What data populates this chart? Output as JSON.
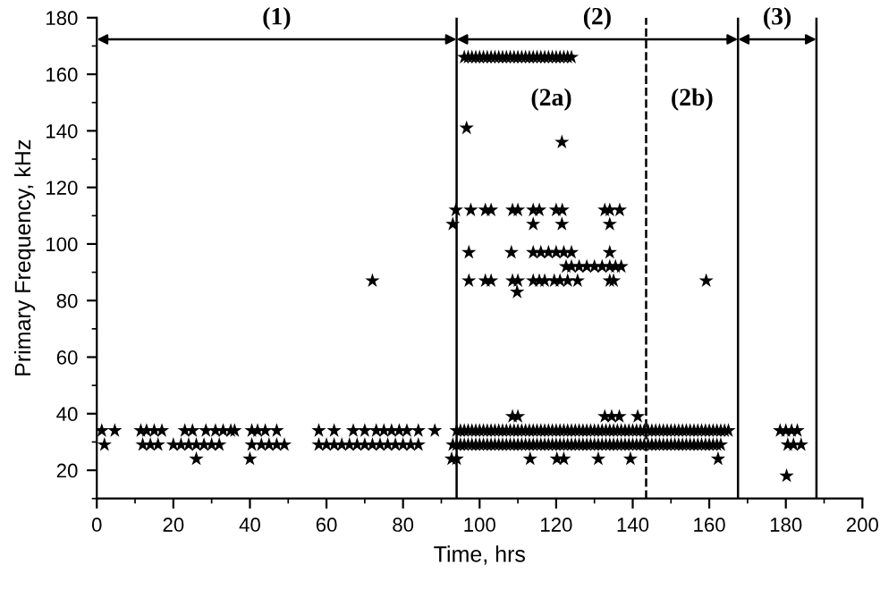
{
  "chart_data": {
    "type": "scatter",
    "xlabel": "Time, hrs",
    "ylabel": "Primary Frequency, kHz",
    "xlim": [
      0,
      200
    ],
    "xticks": [
      0,
      20,
      40,
      60,
      80,
      100,
      120,
      140,
      160,
      180,
      200
    ],
    "ylim": [
      10,
      180
    ],
    "yticks": [
      20,
      40,
      60,
      80,
      100,
      120,
      140,
      160,
      180
    ],
    "grid": false,
    "legend": false,
    "marker": "star",
    "series": [
      {
        "color": "#000000",
        "x": [
          1.3,
          4.7,
          11.5,
          13,
          15,
          17,
          23,
          25,
          28.5,
          31,
          33,
          35,
          36,
          40.5,
          42,
          44,
          47,
          58,
          62,
          67,
          70,
          73,
          75,
          77,
          79,
          81,
          84,
          88.3,
          94,
          95,
          96,
          97,
          98,
          99,
          100,
          101,
          102,
          103,
          104,
          105,
          106,
          107,
          108,
          109,
          110,
          111,
          112,
          113,
          114,
          115,
          116,
          117,
          118,
          119,
          120,
          121,
          122,
          123,
          124,
          125,
          126,
          127,
          128,
          129,
          130,
          131,
          132,
          133,
          134,
          135,
          136,
          137,
          138,
          139,
          140,
          141,
          142,
          143,
          144,
          145,
          146,
          147,
          148,
          149,
          150,
          151,
          152,
          153,
          154,
          155,
          156,
          157,
          158,
          159,
          160,
          161,
          162,
          163,
          164,
          165,
          178.5,
          180,
          181.5,
          183
        ],
        "values": [
          34,
          34,
          34,
          34,
          34,
          34,
          34,
          34,
          34,
          34,
          34,
          34,
          34,
          34,
          34,
          34,
          34,
          34,
          34,
          34,
          34,
          34,
          34,
          34,
          34,
          34,
          34,
          34,
          34,
          34,
          34,
          34,
          34,
          34,
          34,
          34,
          34,
          34,
          34,
          34,
          34,
          34,
          34,
          34,
          34,
          34,
          34,
          34,
          34,
          34,
          34,
          34,
          34,
          34,
          34,
          34,
          34,
          34,
          34,
          34,
          34,
          34,
          34,
          34,
          34,
          34,
          34,
          34,
          34,
          34,
          34,
          34,
          34,
          34,
          34,
          34,
          34,
          34,
          34,
          34,
          34,
          34,
          34,
          34,
          34,
          34,
          34,
          34,
          34,
          34,
          34,
          34,
          34,
          34,
          34,
          34,
          34,
          34,
          34,
          34,
          34,
          34,
          34,
          34
        ]
      },
      {
        "color": "#000000",
        "x": [
          2,
          12,
          14,
          16,
          20,
          22,
          24,
          26,
          28,
          30,
          32,
          40.5,
          43,
          45,
          47,
          49,
          58,
          60,
          62,
          64,
          66,
          68,
          70,
          72,
          74,
          76,
          78,
          80,
          82,
          84,
          93,
          94,
          95,
          96,
          97,
          98,
          99,
          100,
          101,
          102,
          103,
          104,
          105,
          106,
          107,
          108,
          109,
          110,
          111,
          112,
          113,
          114,
          115,
          116,
          117,
          118,
          119,
          120,
          121,
          122,
          123,
          124,
          125,
          126,
          127,
          128,
          129,
          130,
          131,
          132,
          133,
          134,
          135,
          136,
          137,
          138,
          139,
          140,
          141,
          142,
          143,
          144,
          145,
          146,
          147,
          148,
          149,
          150,
          151,
          152,
          153,
          154,
          155,
          156,
          157,
          158,
          159,
          160,
          161,
          162,
          163,
          180.5,
          182,
          184
        ],
        "values": [
          29,
          29,
          29,
          29,
          29,
          29,
          29,
          29,
          29,
          29,
          29,
          29,
          29,
          29,
          29,
          29,
          29,
          29,
          29,
          29,
          29,
          29,
          29,
          29,
          29,
          29,
          29,
          29,
          29,
          29,
          29,
          29,
          29,
          29,
          29,
          29,
          29,
          29,
          29,
          29,
          29,
          29,
          29,
          29,
          29,
          29,
          29,
          29,
          29,
          29,
          29,
          29,
          29,
          29,
          29,
          29,
          29,
          29,
          29,
          29,
          29,
          29,
          29,
          29,
          29,
          29,
          29,
          29,
          29,
          29,
          29,
          29,
          29,
          29,
          29,
          29,
          29,
          29,
          29,
          29,
          29,
          29,
          29,
          29,
          29,
          29,
          29,
          29,
          29,
          29,
          29,
          29,
          29,
          29,
          29,
          29,
          29,
          29,
          29,
          29,
          29,
          29,
          29,
          29
        ]
      },
      {
        "color": "#000000",
        "x": [
          26,
          40,
          92.7,
          94,
          113.2,
          120.2,
          122,
          131,
          139.4,
          162.3,
          180.2
        ],
        "values": [
          24,
          24,
          24,
          24,
          24,
          24,
          24,
          24,
          24,
          24,
          18
        ]
      },
      {
        "color": "#000000",
        "x": [
          108.6,
          110,
          132.7,
          134.5,
          136.5,
          141.3
        ],
        "values": [
          39,
          39,
          39,
          39,
          39,
          39
        ]
      },
      {
        "color": "#000000",
        "x": [
          72,
          97.2,
          101.5,
          103,
          108.6,
          110,
          114,
          115.6,
          117,
          119.5,
          121,
          123,
          125.6,
          134,
          135,
          159.2,
          109.8
        ],
        "values": [
          87,
          87,
          87,
          87,
          87,
          87,
          87,
          87,
          87,
          87,
          87,
          87,
          87,
          87,
          87,
          87,
          83
        ]
      },
      {
        "color": "#000000",
        "x": [
          122.6,
          124,
          126,
          128,
          130,
          132,
          134,
          135.5,
          137
        ],
        "values": [
          92,
          92,
          92,
          92,
          92,
          92,
          92,
          92,
          92
        ]
      },
      {
        "color": "#000000",
        "x": [
          97.2,
          108.3,
          114,
          116,
          118,
          120,
          122,
          124,
          134
        ],
        "values": [
          97,
          97,
          97,
          97,
          97,
          97,
          97,
          97,
          97
        ]
      },
      {
        "color": "#000000",
        "x": [
          93,
          114,
          121.5,
          134
        ],
        "values": [
          107,
          107,
          107,
          107
        ]
      },
      {
        "color": "#000000",
        "x": [
          93.8,
          97.7,
          101.5,
          103,
          108.6,
          110,
          114,
          115.6,
          120,
          121.6,
          132.7,
          134,
          136.6
        ],
        "values": [
          112,
          112,
          112,
          112,
          112,
          112,
          112,
          112,
          112,
          112,
          112,
          112,
          112
        ]
      },
      {
        "color": "#000000",
        "x": [
          96.6,
          121.5
        ],
        "values": [
          141,
          136
        ]
      },
      {
        "color": "#000000",
        "x": [
          96,
          97,
          98,
          99,
          100,
          101,
          102,
          103,
          104,
          105,
          106,
          107,
          108,
          109,
          110,
          111,
          112,
          113,
          114,
          115,
          116,
          117,
          118,
          119,
          120,
          121,
          122,
          123,
          124
        ],
        "values": [
          166,
          166,
          166,
          166,
          166,
          166,
          166,
          166,
          166,
          166,
          166,
          166,
          166,
          166,
          166,
          166,
          166,
          166,
          166,
          166,
          166,
          166,
          166,
          166,
          166,
          166,
          166,
          166,
          166
        ]
      }
    ],
    "ref_lines": [
      {
        "axis": "x",
        "value": 94,
        "line_style": "solid",
        "color": "#000000"
      },
      {
        "axis": "x",
        "value": 143.5,
        "line_style": "dashed",
        "color": "#000000"
      },
      {
        "axis": "x",
        "value": 167.5,
        "line_style": "solid",
        "color": "#000000"
      },
      {
        "axis": "x",
        "value": 188,
        "line_style": "solid",
        "color": "#000000"
      }
    ],
    "annotations": [
      "(1)",
      "(2)",
      "(3)",
      "(2a)",
      "(2b)"
    ]
  }
}
